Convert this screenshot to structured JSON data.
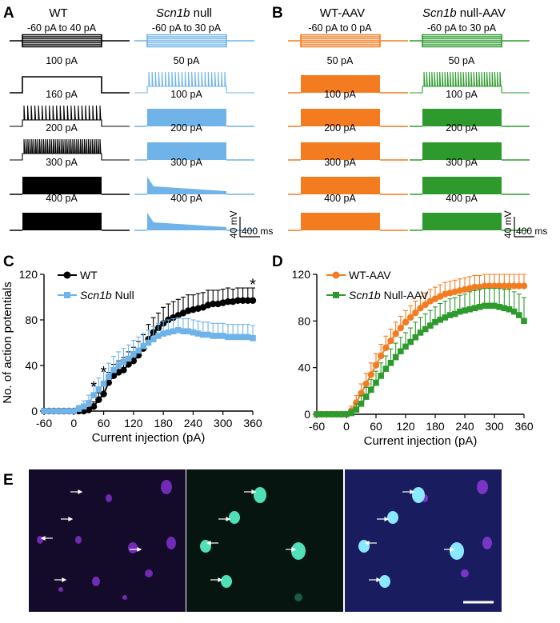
{
  "panelA": {
    "letter": "A",
    "col1": "WT",
    "col2_italic": "Scn1b",
    "col2_rest": " null",
    "wt_labels": [
      "-60 pA to 40 pA",
      "100 pA",
      "160 pA",
      "200 pA",
      "300 pA",
      "400 pA"
    ],
    "null_labels": [
      "-60 pA to 30 pA",
      "50 pA",
      "100 pA",
      "200 pA",
      "300 pA",
      "400 pA"
    ],
    "scale_mv": "40 mV",
    "scale_ms": "400 ms"
  },
  "panelB": {
    "letter": "B",
    "col1": "WT-AAV",
    "col2_italic": "Scn1b",
    "col2_rest": " null-AAV",
    "wt_labels": [
      "-60 pA to 0 pA",
      "50 pA",
      "100 pA",
      "200 pA",
      "300 pA",
      "400 pA"
    ],
    "null_labels": [
      "-60 pA to 30 pA",
      "50 pA",
      "100 pA",
      "200 pA",
      "300 pA",
      "400 pA"
    ],
    "scale_mv": "40 mV",
    "scale_ms": "400 ms"
  },
  "panelC": {
    "letter": "C",
    "legend1": "WT",
    "legend2_italic": "Scn1b",
    "legend2_rest": " Null",
    "star": "*"
  },
  "panelD": {
    "letter": "D",
    "legend1": "WT-AAV",
    "legend2_italic": "Scn1b",
    "legend2_rest": " Null-AAV"
  },
  "panelE": {
    "letter": "E"
  },
  "colors": {
    "wt": "#000000",
    "null": "#6fb3e8",
    "wtaav": "#f47c20",
    "nullaav": "#2e9a2e"
  },
  "chart_data": [
    {
      "type": "line",
      "title": "",
      "xlabel": "Current injection (pA)",
      "ylabel": "No. of action potentials",
      "xlim": [
        -60,
        360
      ],
      "ylim": [
        0,
        120
      ],
      "xticks": [
        "-60",
        "0",
        "60",
        "120",
        "180",
        "240",
        "300",
        "360"
      ],
      "yticks": [
        "0",
        "40",
        "80",
        "120"
      ],
      "x": [
        -60,
        -50,
        -40,
        -30,
        -20,
        -10,
        0,
        10,
        20,
        30,
        40,
        50,
        60,
        70,
        80,
        90,
        100,
        110,
        120,
        130,
        140,
        150,
        160,
        170,
        180,
        190,
        200,
        210,
        220,
        230,
        240,
        250,
        260,
        270,
        280,
        290,
        300,
        310,
        320,
        330,
        340,
        350,
        360
      ],
      "series": [
        {
          "name": "WT",
          "color": "#000000",
          "marker": "circle",
          "values": [
            0,
            0,
            0,
            0,
            0,
            0,
            0,
            0,
            0,
            1,
            4,
            10,
            15,
            25,
            31,
            34,
            36,
            41,
            44,
            49,
            55,
            63,
            69,
            73,
            77,
            80,
            82,
            84,
            86,
            88,
            89,
            90,
            91,
            93,
            94,
            94,
            95,
            96,
            96,
            97,
            97,
            97,
            97
          ],
          "err": [
            0,
            0,
            0,
            0,
            0,
            0,
            0,
            1,
            1,
            2,
            4,
            6,
            8,
            9,
            10,
            10,
            11,
            11,
            12,
            12,
            12,
            13,
            13,
            13,
            14,
            14,
            14,
            14,
            14,
            14,
            13,
            13,
            13,
            13,
            12,
            12,
            12,
            12,
            11,
            11,
            11,
            11,
            11
          ]
        },
        {
          "name": "Scn1b Null",
          "color": "#6fb3e8",
          "marker": "square",
          "values": [
            0,
            0,
            0,
            0,
            0,
            0,
            0,
            2,
            4,
            7,
            14,
            19,
            24,
            30,
            36,
            40,
            43,
            46,
            50,
            53,
            57,
            60,
            63,
            66,
            68,
            69,
            70,
            71,
            70,
            70,
            69,
            68,
            67,
            67,
            66,
            66,
            66,
            65,
            65,
            65,
            65,
            65,
            64
          ],
          "err": [
            0,
            0,
            0,
            0,
            0,
            0,
            1,
            3,
            5,
            7,
            9,
            10,
            11,
            12,
            12,
            12,
            12,
            12,
            12,
            12,
            11,
            11,
            11,
            11,
            11,
            11,
            11,
            11,
            11,
            11,
            11,
            11,
            11,
            11,
            11,
            11,
            11,
            11,
            11,
            11,
            11,
            11,
            11
          ]
        }
      ],
      "annotations": [
        {
          "x": 40,
          "y": 22,
          "text": "*"
        },
        {
          "x": 60,
          "y": 35,
          "text": "*"
        },
        {
          "x": 360,
          "y": 112,
          "text": "*"
        }
      ]
    },
    {
      "type": "line",
      "title": "",
      "xlabel": "Current injection (pA)",
      "ylabel": "",
      "xlim": [
        -60,
        360
      ],
      "ylim": [
        0,
        120
      ],
      "xticks": [
        "-60",
        "0",
        "60",
        "120",
        "180",
        "240",
        "300",
        "360"
      ],
      "yticks": [
        "0",
        "40",
        "80",
        "120"
      ],
      "x": [
        -60,
        -50,
        -40,
        -30,
        -20,
        -10,
        0,
        10,
        20,
        30,
        40,
        50,
        60,
        70,
        80,
        90,
        100,
        110,
        120,
        130,
        140,
        150,
        160,
        170,
        180,
        190,
        200,
        210,
        220,
        230,
        240,
        250,
        260,
        270,
        280,
        290,
        300,
        310,
        320,
        330,
        340,
        350,
        360
      ],
      "series": [
        {
          "name": "WT-AAV",
          "color": "#f47c20",
          "marker": "circle",
          "values": [
            0,
            0,
            0,
            0,
            0,
            0,
            0,
            3,
            10,
            18,
            26,
            34,
            42,
            50,
            57,
            63,
            69,
            74,
            79,
            83,
            87,
            91,
            94,
            97,
            99,
            101,
            103,
            104,
            105,
            106,
            107,
            108,
            109,
            109,
            110,
            110,
            110,
            110,
            110,
            110,
            110,
            110,
            110
          ],
          "err": [
            0,
            0,
            0,
            0,
            0,
            0,
            1,
            4,
            6,
            8,
            9,
            10,
            10,
            10,
            10,
            10,
            10,
            10,
            10,
            10,
            10,
            10,
            10,
            10,
            10,
            10,
            10,
            10,
            10,
            10,
            10,
            10,
            10,
            10,
            10,
            10,
            10,
            10,
            10,
            10,
            10,
            10,
            10
          ]
        },
        {
          "name": "Scn1b Null-AAV",
          "color": "#2e9a2e",
          "marker": "square",
          "values": [
            0,
            0,
            0,
            0,
            0,
            0,
            0,
            1,
            4,
            9,
            15,
            21,
            27,
            33,
            39,
            44,
            49,
            54,
            58,
            62,
            66,
            70,
            73,
            76,
            79,
            81,
            83,
            85,
            86,
            88,
            89,
            90,
            91,
            92,
            93,
            93,
            93,
            92,
            91,
            90,
            88,
            85,
            80
          ],
          "err": [
            0,
            0,
            0,
            0,
            0,
            0,
            0,
            3,
            5,
            7,
            8,
            9,
            10,
            11,
            11,
            12,
            12,
            12,
            12,
            12,
            13,
            13,
            13,
            13,
            13,
            14,
            14,
            14,
            14,
            14,
            14,
            15,
            15,
            15,
            15,
            15,
            15,
            16,
            16,
            17,
            17,
            18,
            20
          ]
        }
      ]
    }
  ]
}
